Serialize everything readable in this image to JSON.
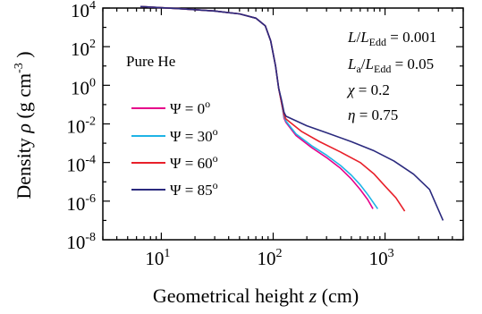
{
  "chart_data": {
    "type": "line",
    "xlabel": "Geometrical height z (cm)",
    "ylabel": "Density ρ (g cm-3)",
    "x_scale": "log",
    "y_scale": "log",
    "xlim": [
      3,
      5000
    ],
    "ylim": [
      1e-08,
      10000.0
    ],
    "x_tick_labels": [
      "10^1",
      "10^2",
      "10^3"
    ],
    "y_tick_labels": [
      "10^4",
      "10^2",
      "10^0",
      "10^-2",
      "10^-4",
      "10^-6",
      "10^-8"
    ],
    "grid": false,
    "legend_position": "left",
    "annotations": {
      "composition": "Pure He",
      "L_ratio": "L/LEdd = 0.001",
      "La_ratio": "La/LEdd = 0.05",
      "chi": "χ = 0.2",
      "eta": "η = 0.75"
    },
    "series": [
      {
        "name": "Ψ = 0°",
        "color": "#e6008a",
        "points": [
          [
            6.5,
            12000
          ],
          [
            15,
            9200
          ],
          [
            30,
            7000
          ],
          [
            50,
            5000
          ],
          [
            70,
            3000
          ],
          [
            85,
            1200
          ],
          [
            95,
            200
          ],
          [
            105,
            10
          ],
          [
            112,
            0.7
          ],
          [
            118,
            0.15
          ],
          [
            122,
            0.05
          ],
          [
            125,
            0.02
          ],
          [
            130,
            0.012
          ],
          [
            160,
            0.0025
          ],
          [
            220,
            0.0006
          ],
          [
            300,
            0.00018
          ],
          [
            400,
            5e-05
          ],
          [
            500,
            1.4e-05
          ],
          [
            600,
            4e-06
          ],
          [
            700,
            1.2e-06
          ],
          [
            780,
            4e-07
          ]
        ]
      },
      {
        "name": "Ψ = 30°",
        "color": "#1fb4e6",
        "points": [
          [
            6.5,
            12000
          ],
          [
            15,
            9200
          ],
          [
            30,
            7000
          ],
          [
            50,
            5000
          ],
          [
            70,
            3000
          ],
          [
            85,
            1200
          ],
          [
            95,
            200
          ],
          [
            105,
            10
          ],
          [
            112,
            0.7
          ],
          [
            118,
            0.15
          ],
          [
            122,
            0.05
          ],
          [
            125,
            0.025
          ],
          [
            130,
            0.014
          ],
          [
            160,
            0.003
          ],
          [
            220,
            0.00075
          ],
          [
            300,
            0.00024
          ],
          [
            400,
            7e-05
          ],
          [
            500,
            2.2e-05
          ],
          [
            600,
            7e-06
          ],
          [
            700,
            2.2e-06
          ],
          [
            860,
            4e-07
          ]
        ]
      },
      {
        "name": "Ψ = 60°",
        "color": "#e8202a",
        "points": [
          [
            6.5,
            12000
          ],
          [
            15,
            9200
          ],
          [
            30,
            7000
          ],
          [
            50,
            5000
          ],
          [
            70,
            3000
          ],
          [
            85,
            1200
          ],
          [
            95,
            200
          ],
          [
            105,
            10
          ],
          [
            112,
            0.7
          ],
          [
            118,
            0.15
          ],
          [
            122,
            0.06
          ],
          [
            125,
            0.03
          ],
          [
            130,
            0.018
          ],
          [
            180,
            0.004
          ],
          [
            260,
            0.0012
          ],
          [
            400,
            0.00035
          ],
          [
            600,
            0.0001
          ],
          [
            800,
            2.5e-05
          ],
          [
            1000,
            6e-06
          ],
          [
            1250,
            1.5e-06
          ],
          [
            1500,
            3e-07
          ]
        ]
      },
      {
        "name": "Ψ = 85°",
        "color": "#2b2a7e",
        "points": [
          [
            6.5,
            12000
          ],
          [
            15,
            9200
          ],
          [
            30,
            7000
          ],
          [
            50,
            5000
          ],
          [
            70,
            3000
          ],
          [
            85,
            1200
          ],
          [
            95,
            200
          ],
          [
            105,
            10
          ],
          [
            112,
            0.7
          ],
          [
            118,
            0.2
          ],
          [
            122,
            0.08
          ],
          [
            125,
            0.04
          ],
          [
            130,
            0.025
          ],
          [
            200,
            0.008
          ],
          [
            300,
            0.0035
          ],
          [
            500,
            0.0012
          ],
          [
            800,
            0.0004
          ],
          [
            1200,
            0.00012
          ],
          [
            1800,
            2.5e-05
          ],
          [
            2500,
            4e-06
          ],
          [
            3300,
            1e-07
          ]
        ]
      }
    ]
  }
}
